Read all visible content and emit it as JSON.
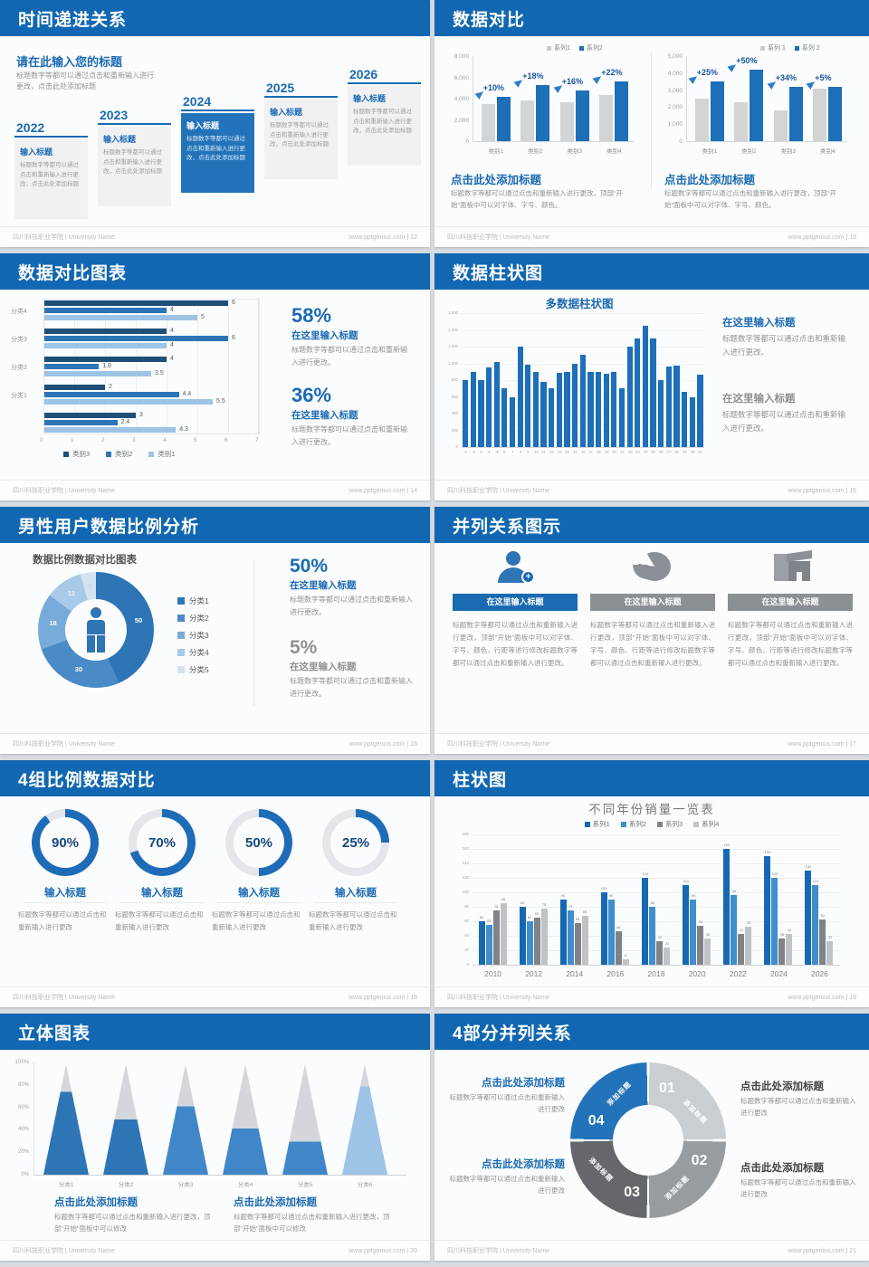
{
  "common": {
    "footer_left": "四川科技职业学院 | University Name",
    "site": "www.pptgenius.com",
    "colors": {
      "header_blue": "#1167b1",
      "accent_blue": "#1b6ab3",
      "bar_blue": "#1d6fb8",
      "mid_blue": "#3f87c8",
      "light_blue": "#9dc3e6",
      "dark_navy": "#1f4e79",
      "gray_bar": "#d2d4d6",
      "icon_gray": "#8a9096",
      "body_gray": "#8f9397"
    }
  },
  "slides": [
    {
      "title": "时间递进关系",
      "footer_right": "www.pptgenius.com | 12",
      "heading": "请在此输入您的标题",
      "intro": "标题数字等都可以通过点击和重新输入进行更改，点击此处添加标题",
      "items": [
        {
          "year": "2022",
          "box_title": "输入标题",
          "box_body": "标题数字等都可以通过点击和重新输入进行更改，点击此处添加标题",
          "highlight": false
        },
        {
          "year": "2023",
          "box_title": "输入标题",
          "box_body": "标题数字等都可以通过点击和重新输入进行更改，点击此处添加标题",
          "highlight": false
        },
        {
          "year": "2024",
          "box_title": "输入标题",
          "box_body": "标题数字等都可以通过点击和重新输入进行更改，点击此处添加标题",
          "highlight": true
        },
        {
          "year": "2025",
          "box_title": "输入标题",
          "box_body": "标题数字等都可以通过点击和重新输入进行更改，点击此处添加标题",
          "highlight": false
        },
        {
          "year": "2026",
          "box_title": "输入标题",
          "box_body": "标题数字等都可以通过点击和重新输入进行更改，点击此处添加标题",
          "highlight": false
        }
      ]
    },
    {
      "title": "数据对比",
      "footer_right": "www.pptgenius.com | 13",
      "panels": [
        {
          "chart_data": {
            "type": "bar",
            "legend": [
              "系列1",
              "系列2"
            ],
            "categories": [
              "类别1",
              "类别2",
              "类别3",
              "类别4"
            ],
            "series": [
              {
                "name": "系列1",
                "values": [
                  3500,
                  3800,
                  3700,
                  4300
                ]
              },
              {
                "name": "系列2",
                "values": [
                  4200,
                  5300,
                  4800,
                  5600
                ]
              }
            ],
            "growth_labels": [
              "+10%",
              "+18%",
              "+16%",
              "+22%"
            ],
            "ymax": 8000,
            "yticks": [
              "8,000",
              "6,000",
              "4,000",
              "2,000",
              "0"
            ]
          },
          "heading": "点击此处添加标题",
          "body": "标题数字等都可以通过点击和重新输入进行更改，顶部“开始”面板中可以对字体、字号、颜色。"
        },
        {
          "chart_data": {
            "type": "bar",
            "legend": [
              "系列 1",
              "系列 2"
            ],
            "categories": [
              "类别1",
              "类别2",
              "类别3",
              "类别4"
            ],
            "series": [
              {
                "name": "系列 1",
                "values": [
                  2500,
                  2300,
                  1800,
                  3100
                ]
              },
              {
                "name": "系列 2",
                "values": [
                  3500,
                  4200,
                  3200,
                  3200
                ]
              }
            ],
            "growth_labels": [
              "+25%",
              "+50%",
              "+34%",
              "+5%"
            ],
            "ymax": 5000,
            "yticks": [
              "5,000",
              "4,000",
              "3,000",
              "2,000",
              "1,000",
              "0"
            ]
          },
          "heading": "点击此处添加标题",
          "body": "标题数字等都可以通过点击和重新输入进行更改，顶部“开始”面板中可以对字体、字号、颜色。"
        }
      ]
    },
    {
      "title": "数据对比图表",
      "footer_right": "www.pptgenius.com | 14",
      "chart_data": {
        "type": "bar",
        "orientation": "horizontal",
        "groups": [
          {
            "label": "分类4",
            "values": [
              6,
              4,
              5
            ]
          },
          {
            "label": "分类3",
            "values": [
              4,
              6,
              4
            ]
          },
          {
            "label": "分类2",
            "values": [
              4,
              1.8,
              3.5
            ]
          },
          {
            "label": "分类1",
            "values": [
              2,
              4.4,
              5.5
            ]
          },
          {
            "label": "",
            "values": [
              3,
              2.4,
              4.3
            ]
          }
        ],
        "legend": [
          "类别3",
          "类别2",
          "类别1"
        ],
        "xticks": [
          "0",
          "1",
          "2",
          "3",
          "4",
          "5",
          "6",
          "7"
        ],
        "xmax": 7
      },
      "stats": [
        {
          "pct": "58%",
          "sub": "在这里输入标题",
          "body": "标题数字等都可以通过点击和重新输入进行更改。",
          "accent": true
        },
        {
          "pct": "36%",
          "sub": "在这里输入标题",
          "body": "标题数字等都可以通过点击和重新输入进行更改。",
          "accent": true
        }
      ]
    },
    {
      "title": "数据柱状图",
      "footer_right": "www.pptgenius.com | 15",
      "chart_data": {
        "type": "bar",
        "title": "多数据柱状图",
        "categories": [
          "1",
          "2",
          "3",
          "4",
          "5",
          "6",
          "7",
          "8",
          "9",
          "10",
          "11",
          "12",
          "13",
          "14",
          "15",
          "16",
          "17",
          "18",
          "19",
          "20",
          "21",
          "22",
          "23",
          "24",
          "25",
          "26",
          "27",
          "28",
          "29",
          "30",
          "31"
        ],
        "values": [
          800,
          900,
          800,
          950,
          1020,
          700,
          600,
          1200,
          980,
          900,
          780,
          700,
          890,
          900,
          1000,
          1100,
          900,
          900,
          880,
          900,
          700,
          1200,
          1300,
          1450,
          1300,
          800,
          960,
          970,
          660,
          600,
          870
        ],
        "ymax": 1600,
        "yticks": [
          "1,600",
          "1,400",
          "1,200",
          "1,000",
          "800",
          "600",
          "400",
          "200",
          "0"
        ]
      },
      "stats": [
        {
          "sub": "在这里输入标题",
          "body": "标题数字等都可以通过点击和重新输入进行更改。",
          "accent": true
        },
        {
          "sub": "在这里输入标题",
          "body": "标题数字等都可以通过点击和重新输入进行更改。",
          "accent": false
        }
      ]
    },
    {
      "title": "男性用户数据比例分析",
      "footer_right": "www.pptgenius.com | 16",
      "chart_data": {
        "type": "pie",
        "title": "数据比例数据对比图表",
        "labels": [
          "分类1",
          "分类2",
          "分类3",
          "分类4",
          "分类5"
        ],
        "values": [
          50,
          30,
          18,
          12,
          5
        ],
        "slice_labels": [
          "50",
          "30",
          "18",
          "12",
          "5"
        ],
        "colors": [
          "#2e75b6",
          "#4a8ac6",
          "#77abd9",
          "#a9c9e8",
          "#d5e3f1"
        ]
      },
      "stats": [
        {
          "pct": "50%",
          "sub": "在这里输入标题",
          "body": "标题数字等都可以通过点击和重新输入进行更改。",
          "accent": true
        },
        {
          "pct": "5%",
          "sub": "在这里输入标题",
          "body": "标题数字等都可以通过点击和重新输入进行更改。",
          "accent": false
        }
      ]
    },
    {
      "title": "并列关系图示",
      "footer_right": "www.pptgenius.com | 17",
      "columns": [
        {
          "icon": "user-add-icon",
          "bar_title": "在这里输入标题",
          "body": "标题数字等都可以通过点击和重新输入进行更改，顶部“开始”面板中可以对字体、字号、颜色、行距等进行修改标题数字等都可以通过点击和重新输入进行更改。",
          "accent": true
        },
        {
          "icon": "pie-chart-icon",
          "bar_title": "在这里输入标题",
          "body": "标题数字等都可以通过点击和重新输入进行更改，顶部“开始”面板中可以对字体、字号、颜色、行距等进行修改标题数字等都可以通过点击和重新输入进行更改。",
          "accent": false
        },
        {
          "icon": "building-icon",
          "bar_title": "在这里输入标题",
          "body": "标题数字等都可以通过点击和重新输入进行更改，顶部“开始”面板中可以对字体、字号、颜色、行距等进行修改标题数字等都可以通过点击和重新输入进行更改。",
          "accent": false
        }
      ]
    },
    {
      "title": "4组比例数据对比",
      "footer_right": "www.pptgenius.com | 18",
      "rings": [
        {
          "pct": 90,
          "pct_label": "90%",
          "ring_title": "输入标题",
          "body": "标题数字等都可以通过点击和重新输入进行更改"
        },
        {
          "pct": 70,
          "pct_label": "70%",
          "ring_title": "输入标题",
          "body": "标题数字等都可以通过点击和重新输入进行更改"
        },
        {
          "pct": 50,
          "pct_label": "50%",
          "ring_title": "输入标题",
          "body": "标题数字等都可以通过点击和重新输入进行更改"
        },
        {
          "pct": 25,
          "pct_label": "25%",
          "ring_title": "输入标题",
          "body": "标题数字等都可以通过点击和重新输入进行更改"
        }
      ]
    },
    {
      "title": "柱状图",
      "footer_right": "www.pptgenius.com | 19",
      "chart_data": {
        "type": "bar",
        "title": "不同年份销量一览表",
        "legend": [
          "系列1",
          "系列2",
          "系列3",
          "系列4"
        ],
        "categories": [
          "2010",
          "2012",
          "2014",
          "2016",
          "2018",
          "2020",
          "2022",
          "2024",
          "2026"
        ],
        "series": [
          {
            "name": "系列1",
            "values": [
              60,
              80,
              90,
              100,
              120,
              110,
              160,
              150,
              130
            ]
          },
          {
            "name": "系列2",
            "values": [
              55,
              60,
              75,
              90,
              80,
              90,
              96,
              120,
              110
            ]
          },
          {
            "name": "系列3",
            "values": [
              75,
              65,
              58,
              46,
              32,
              54,
              42,
              36,
              62
            ]
          },
          {
            "name": "系列4",
            "values": [
              85,
              78,
              68,
              8,
              24,
              36,
              53,
              42,
              32
            ]
          }
        ],
        "series_colors": [
          "#1668b3",
          "#3f8ecd",
          "#7f8387",
          "#bfc3c7"
        ],
        "ymax": 180,
        "yticks": [
          "180",
          "160",
          "140",
          "120",
          "100",
          "80",
          "60",
          "40",
          "20",
          "0"
        ]
      }
    },
    {
      "title": "立体图表",
      "footer_right": "www.pptgenius.com | 20",
      "chart_data": {
        "type": "bar",
        "style": "3d-cones",
        "categories": [
          "分类1",
          "分类2",
          "分类3",
          "分类4",
          "分类5",
          "分类6"
        ],
        "fill_percent": [
          75,
          50,
          62,
          42,
          30,
          80
        ],
        "cone_colors": [
          "#2e75b6",
          "#2e75b6",
          "#3f87c8",
          "#3f87c8",
          "#3f87c8",
          "#9dc3e6"
        ],
        "yticks": [
          "100%",
          "80%",
          "60%",
          "40%",
          "20%",
          "0%"
        ]
      },
      "blocks": [
        {
          "heading": "点击此处添加标题",
          "body": "标题数字等都可以通过点击和重新输入进行更改，顶部“开始”面板中可以修改"
        },
        {
          "heading": "点击此处添加标题",
          "body": "标题数字等都可以通过点击和重新输入进行更改，顶部“开始”面板中可以修改"
        }
      ]
    },
    {
      "title": "4部分并列关系",
      "footer_right": "www.pptgenius.com | 21",
      "segments": [
        {
          "num": "01",
          "label": "添加标题",
          "color": "#c9ced3"
        },
        {
          "num": "02",
          "label": "添加标题",
          "color": "#979ca1"
        },
        {
          "num": "03",
          "label": "添加标题",
          "color": "#64676b"
        },
        {
          "num": "04",
          "label": "添加标题",
          "color": "#2273b9"
        }
      ],
      "blocks": [
        {
          "pos": "tl",
          "heading": "点击此处添加标题",
          "body": "标题数字等都可以通过点击和重新输入进行更改",
          "accent": true
        },
        {
          "pos": "tr",
          "heading": "点击此处添加标题",
          "body": "标题数字等都可以通过点击和重新输入进行更改",
          "accent": false
        },
        {
          "pos": "bl",
          "heading": "点击此处添加标题",
          "body": "标题数字等都可以通过点击和重新输入进行更改",
          "accent": true
        },
        {
          "pos": "br",
          "heading": "点击此处添加标题",
          "body": "标题数字等都可以通过点击和重新输入进行更改",
          "accent": false
        }
      ]
    }
  ]
}
